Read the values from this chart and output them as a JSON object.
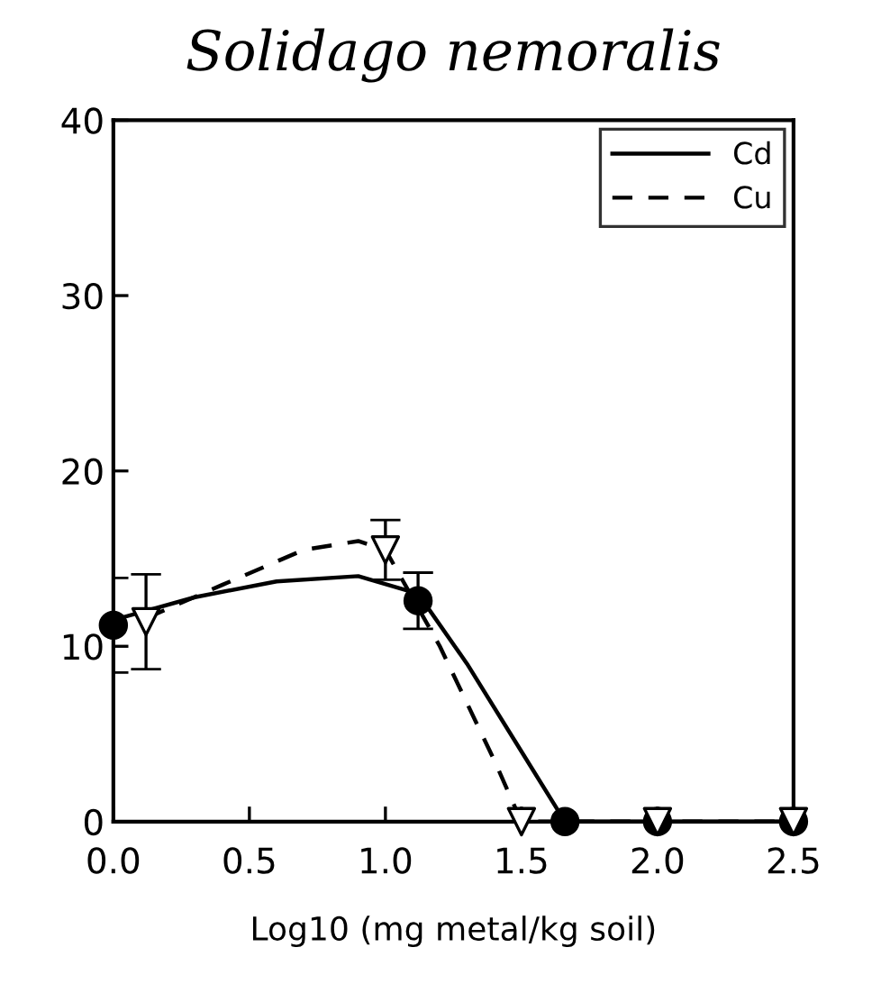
{
  "chart_data": {
    "type": "line",
    "title": "Solidago nemoralis",
    "xlabel": "Log10 (mg metal/kg soil)",
    "xlim": [
      0,
      2.5
    ],
    "ylim": [
      0,
      40
    ],
    "xticks": [
      {
        "value": 0,
        "label": "0.0"
      },
      {
        "value": 0.5,
        "label": "0.5"
      },
      {
        "value": 1,
        "label": "1.0"
      },
      {
        "value": 1.5,
        "label": "1.5"
      },
      {
        "value": 2,
        "label": "2.0"
      },
      {
        "value": 2.5,
        "label": "2.5"
      }
    ],
    "yticks": [
      0,
      10,
      20,
      30,
      40
    ],
    "grid": false,
    "legend": "top right",
    "series": [
      {
        "name": "Cd",
        "line_style": "solid",
        "marker": "none",
        "color": "#000000",
        "x": [
          0,
          0.3,
          0.6,
          0.9,
          1.12,
          1.3,
          1.5,
          1.66,
          2.0,
          2.5
        ],
        "values": [
          11.5,
          12.8,
          13.7,
          14,
          13,
          9,
          4,
          0,
          0,
          0
        ]
      },
      {
        "name": "Cu",
        "type": "line",
        "line_style": "dashed",
        "marker": "none",
        "color": "#000000",
        "x": [
          0.12,
          0.4,
          0.7,
          0.9,
          1.0,
          1.2,
          1.4,
          1.5,
          2.0,
          2.5
        ],
        "values": [
          11.6,
          13.5,
          15.5,
          16,
          15.5,
          10,
          3.5,
          0,
          0,
          0
        ]
      },
      {
        "type": "scatter",
        "marker": "circle",
        "color": "#000000",
        "x": [
          0,
          1.12,
          1.66,
          2.0,
          2.5
        ],
        "values": [
          11.2,
          12.6,
          0,
          0,
          0
        ],
        "errors": [
          2.7,
          1.6,
          null,
          null,
          null
        ]
      },
      {
        "type": "scatter",
        "marker": "triangle",
        "color": "#000000",
        "x": [
          0.12,
          1.0,
          1.5,
          2.0,
          2.5
        ],
        "values": [
          11.4,
          15.5,
          0,
          0,
          0
        ],
        "errors": [
          2.7,
          1.7,
          null,
          null,
          null
        ]
      }
    ]
  }
}
